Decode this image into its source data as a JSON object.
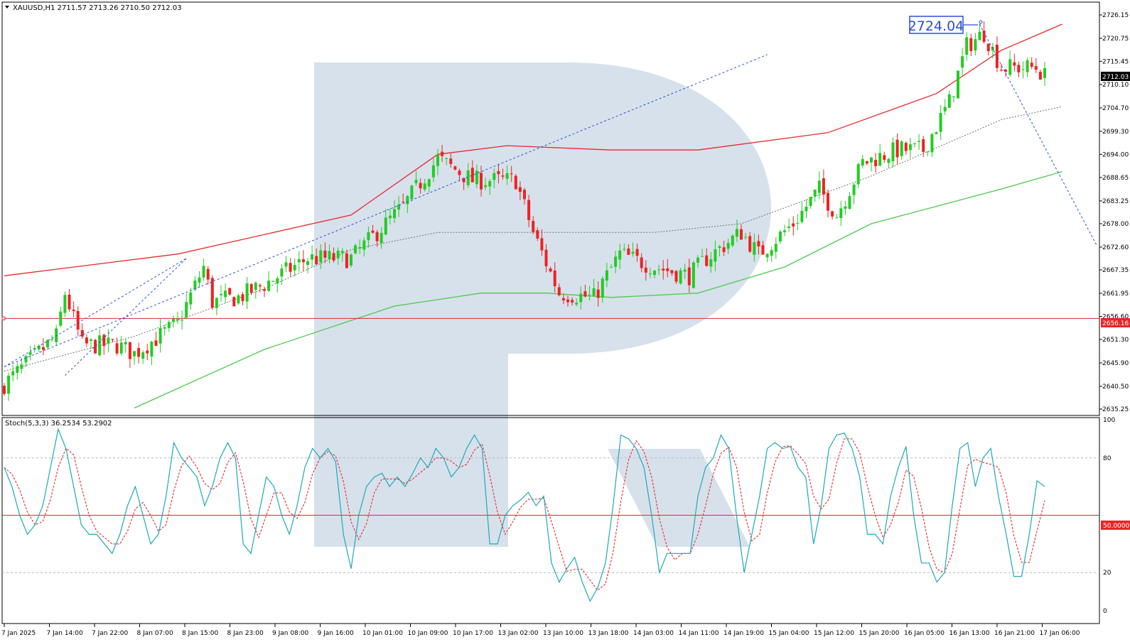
{
  "main_panel": {
    "header": "XAUUSD,H1  2711.57 2713.26 2710.50 2712.03",
    "symbol": "XAUUSD",
    "timeframe": "H1",
    "ohlc": {
      "open": 2711.57,
      "high": 2713.26,
      "low": 2710.5,
      "close": 2712.03
    }
  },
  "stoch_panel": {
    "header": "Stoch(5,3,3) 36.2534 53.2902",
    "main_value": 36.2534,
    "signal_value": 53.2902,
    "level_label": "50.0000",
    "axis_labels": [
      "100",
      "80",
      "20",
      "0"
    ]
  },
  "annotations": {
    "peak_box": "2724.04",
    "current_price": "2712.03",
    "level_price": "2656.16"
  },
  "colors": {
    "bull": "#22cc22",
    "bear": "#ee2222",
    "ma_red": "#e8262a",
    "ma_green": "#4cc94c",
    "stoch_main": "#20a8b8",
    "stoch_signal": "#e8262a",
    "trend_blue": "#2b4fd6",
    "watermark": "#d5dfeb"
  },
  "chart_data": {
    "type": "candlestick",
    "symbol": "XAUUSD",
    "timeframe": "H1",
    "y_ticks": [
      "2726.15",
      "2720.75",
      "2715.45",
      "2710.10",
      "2704.70",
      "2699.30",
      "2694.00",
      "2688.65",
      "2683.25",
      "2678.00",
      "2672.60",
      "2667.35",
      "2661.95",
      "2656.60",
      "2651.30",
      "2645.90",
      "2640.50",
      "2635.25"
    ],
    "y_range": [
      2635.25,
      2726.15
    ],
    "x_ticks": [
      "7 Jan 2025",
      "7 Jan 14:00",
      "7 Jan 22:00",
      "8 Jan 07:00",
      "8 Jan 15:00",
      "8 Jan 23:00",
      "9 Jan 08:00",
      "9 Jan 16:00",
      "10 Jan 01:00",
      "10 Jan 09:00",
      "10 Jan 17:00",
      "13 Jan 02:00",
      "13 Jan 10:00",
      "13 Jan 18:00",
      "14 Jan 03:00",
      "14 Jan 11:00",
      "14 Jan 19:00",
      "15 Jan 04:00",
      "15 Jan 12:00",
      "15 Jan 20:00",
      "16 Jan 05:00",
      "16 Jan 13:00",
      "16 Jan 21:00",
      "17 Jan 06:00"
    ],
    "horizontal_level": 2656.16,
    "current_price": 2712.03,
    "peak": 2724.04,
    "close_waypoints": [
      [
        0,
        2641
      ],
      [
        12,
        2652
      ],
      [
        14,
        2662
      ],
      [
        18,
        2650
      ],
      [
        26,
        2650
      ],
      [
        30,
        2648
      ],
      [
        40,
        2655
      ],
      [
        46,
        2668
      ],
      [
        48,
        2660
      ],
      [
        54,
        2661
      ],
      [
        60,
        2664
      ],
      [
        70,
        2670
      ],
      [
        80,
        2670
      ],
      [
        92,
        2682
      ],
      [
        100,
        2693
      ],
      [
        108,
        2688
      ],
      [
        118,
        2688
      ],
      [
        122,
        2676
      ],
      [
        128,
        2662
      ],
      [
        136,
        2661
      ],
      [
        142,
        2671
      ],
      [
        150,
        2668
      ],
      [
        158,
        2666
      ],
      [
        162,
        2670
      ],
      [
        170,
        2676
      ],
      [
        174,
        2671
      ],
      [
        182,
        2678
      ],
      [
        188,
        2686
      ],
      [
        192,
        2680
      ],
      [
        198,
        2692
      ],
      [
        206,
        2695
      ],
      [
        212,
        2695
      ],
      [
        218,
        2706
      ],
      [
        222,
        2719
      ],
      [
        226,
        2722
      ],
      [
        230,
        2714
      ],
      [
        236,
        2714
      ],
      [
        238,
        2714
      ],
      [
        240,
        2712
      ]
    ],
    "moving_averages": [
      {
        "name": "MA red",
        "points": [
          [
            0,
            2666
          ],
          [
            40,
            2671
          ],
          [
            80,
            2680
          ],
          [
            100,
            2694
          ],
          [
            116,
            2696
          ],
          [
            140,
            2695
          ],
          [
            160,
            2695
          ],
          [
            190,
            2699
          ],
          [
            215,
            2708
          ],
          [
            230,
            2718
          ],
          [
            244,
            2724
          ]
        ]
      },
      {
        "name": "MA gray dotted",
        "points": [
          [
            0,
            2644
          ],
          [
            30,
            2652
          ],
          [
            60,
            2663
          ],
          [
            80,
            2672
          ],
          [
            100,
            2676
          ],
          [
            122,
            2676
          ],
          [
            150,
            2676
          ],
          [
            170,
            2678
          ],
          [
            200,
            2689
          ],
          [
            230,
            2702
          ],
          [
            244,
            2705
          ]
        ]
      },
      {
        "name": "MA green",
        "points": [
          [
            30,
            2635.5
          ],
          [
            60,
            2649
          ],
          [
            90,
            2659
          ],
          [
            110,
            2662
          ],
          [
            125,
            2662
          ],
          [
            140,
            2661
          ],
          [
            160,
            2662
          ],
          [
            180,
            2668
          ],
          [
            200,
            2678
          ],
          [
            230,
            2686
          ],
          [
            244,
            2690
          ]
        ]
      }
    ],
    "trend_lines": [
      {
        "style": "dashed",
        "points": [
          [
            0,
            2645
          ],
          [
            42,
            2670
          ]
        ]
      },
      {
        "style": "dashed",
        "points": [
          [
            14,
            2643
          ],
          [
            42,
            2670
          ]
        ]
      },
      {
        "style": "dashed",
        "points": [
          [
            0,
            2645
          ],
          [
            176,
            2717
          ]
        ]
      },
      {
        "style": "dashed",
        "points": [
          [
            225,
            2724
          ],
          [
            252,
            2673
          ]
        ]
      }
    ],
    "stochastic": {
      "params": "5,3,3",
      "range": [
        0,
        100
      ],
      "levels": [
        20,
        50,
        80
      ],
      "main": [
        75,
        65,
        50,
        40,
        45,
        55,
        75,
        95,
        85,
        65,
        45,
        40,
        40,
        35,
        30,
        40,
        55,
        65,
        50,
        35,
        40,
        60,
        88,
        80,
        75,
        70,
        55,
        65,
        80,
        88,
        80,
        35,
        30,
        50,
        70,
        65,
        50,
        40,
        55,
        75,
        85,
        80,
        85,
        78,
        40,
        22,
        50,
        65,
        70,
        72,
        65,
        70,
        65,
        72,
        80,
        75,
        85,
        80,
        70,
        75,
        85,
        92,
        85,
        35,
        35,
        50,
        55,
        58,
        62,
        55,
        60,
        25,
        15,
        22,
        28,
        15,
        5,
        12,
        25,
        55,
        92,
        90,
        85,
        75,
        50,
        20,
        30,
        30,
        30,
        30,
        60,
        75,
        80,
        92,
        85,
        50,
        20,
        40,
        60,
        85,
        88,
        85,
        86,
        75,
        70,
        35,
        55,
        85,
        92,
        93,
        85,
        70,
        40,
        40,
        35,
        60,
        75,
        86,
        50,
        25,
        25,
        15,
        20,
        55,
        85,
        88,
        65,
        80,
        85,
        60,
        40,
        18,
        18,
        40,
        68,
        65
      ]
    }
  }
}
